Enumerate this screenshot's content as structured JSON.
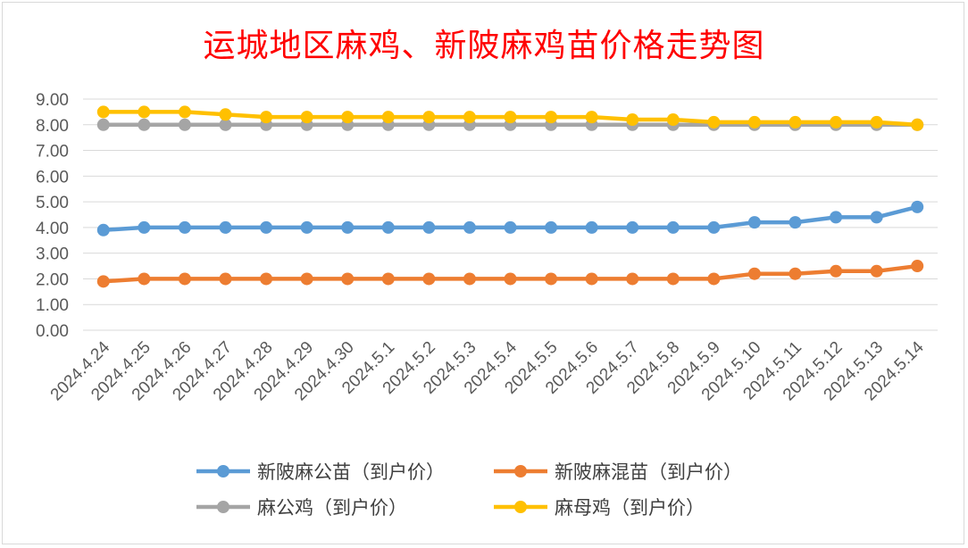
{
  "chart_data": {
    "type": "line",
    "title": "运城地区麻鸡、新陂麻鸡苗价格走势图",
    "xlabel": "",
    "ylabel": "",
    "ylim": [
      0,
      9
    ],
    "y_ticks": [
      "0.00",
      "1.00",
      "2.00",
      "3.00",
      "4.00",
      "5.00",
      "6.00",
      "7.00",
      "8.00",
      "9.00"
    ],
    "grid": "horizontal",
    "legend_position": "bottom",
    "categories": [
      "2024.4.24",
      "2024.4.25",
      "2024.4.26",
      "2024.4.27",
      "2024.4.28",
      "2024.4.29",
      "2024.4.30",
      "2024.5.1",
      "2024.5.2",
      "2024.5.3",
      "2024.5.4",
      "2024.5.5",
      "2024.5.6",
      "2024.5.7",
      "2024.5.8",
      "2024.5.9",
      "2024.5.10",
      "2024.5.11",
      "2024.5.12",
      "2024.5.13",
      "2024.5.14"
    ],
    "series": [
      {
        "name": "新陂麻公苗（到户价）",
        "color": "#5b9bd5",
        "values": [
          3.9,
          4.0,
          4.0,
          4.0,
          4.0,
          4.0,
          4.0,
          4.0,
          4.0,
          4.0,
          4.0,
          4.0,
          4.0,
          4.0,
          4.0,
          4.0,
          4.2,
          4.2,
          4.4,
          4.4,
          4.8
        ]
      },
      {
        "name": "新陂麻混苗（到户价）",
        "color": "#ed7d31",
        "values": [
          1.9,
          2.0,
          2.0,
          2.0,
          2.0,
          2.0,
          2.0,
          2.0,
          2.0,
          2.0,
          2.0,
          2.0,
          2.0,
          2.0,
          2.0,
          2.0,
          2.2,
          2.2,
          2.3,
          2.3,
          2.5
        ]
      },
      {
        "name": "麻公鸡（到户价）",
        "color": "#a5a5a5",
        "values": [
          8.0,
          8.0,
          8.0,
          8.0,
          8.0,
          8.0,
          8.0,
          8.0,
          8.0,
          8.0,
          8.0,
          8.0,
          8.0,
          8.0,
          8.0,
          8.0,
          8.0,
          8.0,
          8.0,
          8.0,
          8.0
        ]
      },
      {
        "name": "麻母鸡（到户价）",
        "color": "#ffc000",
        "values": [
          8.5,
          8.5,
          8.5,
          8.4,
          8.3,
          8.3,
          8.3,
          8.3,
          8.3,
          8.3,
          8.3,
          8.3,
          8.3,
          8.2,
          8.2,
          8.1,
          8.1,
          8.1,
          8.1,
          8.1,
          8.0
        ]
      }
    ]
  }
}
